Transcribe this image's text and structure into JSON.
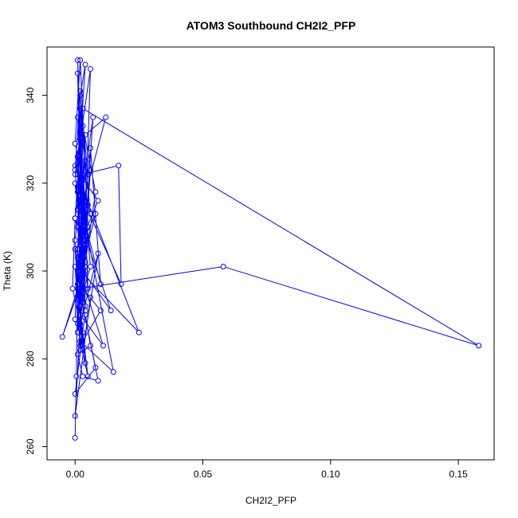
{
  "chart_data": {
    "type": "line",
    "title": "ATOM3 Southbound CH2I2_PFP",
    "xlabel": "CH2I2_PFP",
    "ylabel": "Theta (K)",
    "xlim": [
      -0.011,
      0.164
    ],
    "ylim": [
      257,
      351
    ],
    "xticks": [
      0.0,
      0.05,
      0.1,
      0.15
    ],
    "xtick_labels": [
      "0.00",
      "0.05",
      "0.10",
      "0.15"
    ],
    "yticks": [
      260,
      280,
      300,
      320,
      340
    ],
    "ytick_labels": [
      "260",
      "280",
      "300",
      "320",
      "340"
    ],
    "grid": false,
    "color": "#0000ff",
    "markers": "open-circle",
    "series": [
      {
        "x": [
          0.0,
          0.0005,
          0.001,
          0.0,
          0.002,
          0.001,
          0.003,
          0.0,
          0.004,
          0.002,
          0.005,
          0.001,
          0.003,
          0.006,
          0.0,
          0.002,
          0.004,
          0.001,
          0.007,
          0.003,
          0.0,
          0.002,
          0.005,
          0.001,
          0.003,
          0.008,
          0.004,
          0.001,
          0.003,
          0.002,
          0.006,
          0.0,
          0.002,
          0.004,
          0.001,
          0.009,
          0.003,
          0.0,
          0.002,
          0.005,
          0.001,
          0.004,
          0.012,
          0.002,
          0.004,
          0.001,
          0.003,
          0.006,
          0.002,
          0.0,
          0.004,
          0.002,
          0.001,
          0.003,
          0.005,
          0.002,
          0.0,
          0.003,
          0.017,
          0.018,
          0.001,
          0.002,
          0.004,
          0.001,
          0.003,
          0.002,
          0.025,
          0.002,
          0.004,
          0.001,
          0.003,
          0.006,
          0.01,
          0.0,
          0.003,
          0.001,
          0.002,
          0.004,
          0.008,
          0.002,
          0.003,
          0.001,
          0.005,
          0.002,
          0.006,
          0.004,
          0.002,
          0.001,
          0.003,
          0.014,
          0.002,
          0.004,
          0.001,
          0.003,
          0.002,
          0.058,
          0.158,
          0.003,
          0.002,
          0.004,
          0.001,
          0.003,
          0.002,
          0.0,
          0.004,
          0.002,
          0.001,
          0.003,
          0.01,
          0.002,
          0.004,
          0.006,
          0.001,
          0.003,
          0.009,
          0.002,
          0.008,
          0.0,
          0.003,
          0.002,
          0.011,
          0.004,
          0.001,
          0.003,
          0.015,
          0.002,
          0.005,
          0.001,
          0.0,
          0.003,
          0.009,
          0.002,
          0.004,
          -0.005,
          0.001,
          0.006,
          0.0,
          0.002,
          -0.001,
          0.0
        ],
        "y": [
          262,
          276,
          300,
          289,
          320,
          335,
          308,
          312,
          347,
          340,
          322,
          305,
          293,
          346,
          322,
          327,
          316,
          310,
          335,
          300,
          323,
          341,
          296,
          314,
          333,
          318,
          302,
          348,
          306,
          337,
          313,
          324,
          330,
          291,
          305,
          316,
          321,
          329,
          348,
          310,
          288,
          331,
          335,
          313,
          309,
          345,
          298,
          323,
          320,
          312,
          301,
          292,
          326,
          309,
          315,
          294,
          307,
          322,
          324,
          297,
          319,
          333,
          325,
          314,
          302,
          320,
          286,
          300,
          307,
          322,
          311,
          328,
          297,
          320,
          304,
          326,
          316,
          308,
          313,
          299,
          314,
          322,
          309,
          293,
          301,
          314,
          306,
          318,
          300,
          291,
          311,
          292,
          286,
          305,
          296,
          301,
          283,
          337,
          319,
          306,
          297,
          313,
          282,
          301,
          279,
          292,
          303,
          296,
          291,
          283,
          290,
          283,
          281,
          276,
          275,
          295,
          278,
          272,
          286,
          290,
          283,
          296,
          286,
          314,
          277,
          284,
          276,
          296,
          305,
          282,
          304,
          288,
          300,
          285,
          296,
          294,
          267,
          288,
          296,
          312
        ]
      }
    ]
  }
}
